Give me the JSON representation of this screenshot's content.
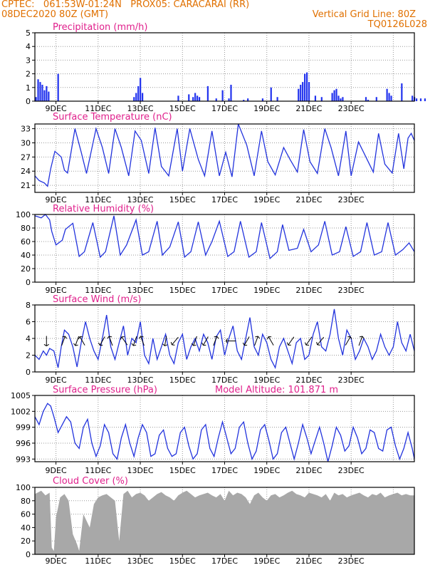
{
  "header": {
    "line1_left": "CPTEC:   061:53W-01:24N   PROX05: CARACARAI (RR)",
    "line2_left": "08DEC2020 80Z (GMT)",
    "line2_right": "Vertical Grid Line: 80Z",
    "line3_right": "TQ0126L028"
  },
  "x_tick_labels": [
    "9DEC",
    "11DEC",
    "13DEC",
    "15DEC",
    "17DEC",
    "19DEC",
    "21DEC",
    "23DEC"
  ],
  "colors": {
    "line": "#2233dd",
    "bar": "#2233ee",
    "cloud": "#a8a8a8",
    "title": "#e0208c",
    "header": "#e07000"
  },
  "chart_data": [
    {
      "type": "bar",
      "title": "Precipitation (mm/h)",
      "ylim": [
        0,
        5
      ],
      "yticks": [
        0,
        1,
        2,
        3,
        4,
        5
      ],
      "x_unit": "days since 08DEC2020 00Z",
      "x": [
        0.05,
        0.15,
        0.25,
        0.35,
        0.45,
        0.55,
        0.65,
        1.1,
        4.7,
        4.8,
        4.9,
        5.0,
        5.1,
        6.8,
        7.3,
        7.5,
        7.6,
        7.7,
        7.8,
        8.2,
        8.6,
        8.9,
        9.2,
        9.3,
        9.9,
        10.1,
        10.8,
        11.2,
        11.5,
        12.5,
        12.6,
        12.7,
        12.8,
        12.9,
        13.0,
        13.3,
        13.6,
        14.1,
        14.2,
        14.3,
        14.4,
        14.5,
        14.6,
        15.7,
        15.8,
        16.2,
        16.7,
        16.8,
        16.9,
        17.4,
        17.9,
        18.0,
        18.1,
        18.3,
        18.5
      ],
      "values": [
        0.3,
        1.6,
        1.4,
        1.2,
        0.8,
        1.1,
        0.7,
        2.0,
        0.3,
        0.6,
        1.1,
        1.7,
        0.6,
        0.4,
        0.5,
        0.3,
        0.6,
        0.4,
        0.3,
        1.1,
        0.2,
        0.8,
        0.2,
        1.2,
        0.1,
        0.2,
        0.2,
        1.0,
        0.3,
        0.9,
        1.2,
        1.4,
        2.0,
        2.1,
        1.4,
        0.4,
        0.3,
        0.6,
        0.8,
        0.9,
        0.4,
        0.2,
        0.3,
        0.3,
        0.1,
        0.3,
        0.9,
        0.6,
        0.4,
        1.3,
        0.4,
        0.3,
        0.2,
        0.2,
        0.2
      ]
    },
    {
      "type": "line",
      "title": "Surface Temperature (nC)",
      "ylim": [
        19.5,
        34
      ],
      "yticks": [
        21,
        24,
        27,
        30,
        33
      ],
      "x": [
        0,
        0.2,
        0.45,
        0.6,
        0.75,
        0.95,
        1.25,
        1.4,
        1.55,
        1.9,
        2.2,
        2.45,
        2.9,
        3.2,
        3.5,
        3.8,
        4.1,
        4.45,
        4.75,
        5.05,
        5.4,
        5.7,
        6.0,
        6.35,
        6.75,
        7.0,
        7.35,
        7.75,
        8.05,
        8.4,
        8.75,
        9.05,
        9.35,
        9.65,
        10.05,
        10.4,
        10.75,
        11.05,
        11.4,
        11.8,
        12.1,
        12.45,
        12.75,
        13.05,
        13.4,
        13.75,
        14.05,
        14.4,
        14.75,
        15.0,
        15.35,
        15.7,
        16.05,
        16.3,
        16.6,
        16.95,
        17.25,
        17.5,
        17.7,
        17.85,
        18.0
      ],
      "values": [
        23.0,
        22.0,
        21.5,
        20.8,
        24.5,
        28.2,
        27.0,
        24.2,
        23.6,
        33.0,
        28.0,
        23.5,
        33.0,
        29.0,
        23.5,
        33.0,
        29.0,
        23.0,
        32.5,
        30.5,
        23.5,
        33.2,
        25.0,
        23.0,
        33.0,
        24.0,
        33.0,
        26.5,
        23.0,
        32.5,
        23.0,
        28.0,
        22.8,
        34.0,
        29.5,
        23.0,
        32.5,
        26.0,
        23.2,
        29.0,
        26.5,
        23.8,
        32.8,
        26.0,
        23.5,
        33.0,
        29.0,
        23.0,
        32.5,
        23.0,
        30.2,
        27.0,
        23.8,
        32.0,
        25.5,
        23.6,
        32.0,
        24.5,
        31.0,
        32.0,
        30.5
      ]
    },
    {
      "type": "line",
      "title": "Relative Humidity (%)",
      "ylim": [
        0,
        100
      ],
      "yticks": [
        0,
        20,
        40,
        60,
        80,
        100
      ],
      "x": [
        0,
        0.3,
        0.5,
        0.7,
        0.8,
        1.0,
        1.3,
        1.45,
        1.8,
        2.1,
        2.35,
        2.75,
        3.1,
        3.35,
        3.75,
        4.05,
        4.35,
        4.8,
        5.1,
        5.4,
        5.8,
        6.05,
        6.4,
        6.8,
        7.1,
        7.4,
        7.75,
        8.1,
        8.4,
        8.75,
        9.15,
        9.45,
        9.75,
        10.15,
        10.5,
        10.75,
        11.15,
        11.5,
        11.75,
        12.05,
        12.45,
        12.75,
        13.1,
        13.45,
        13.75,
        14.1,
        14.45,
        14.75,
        15.1,
        15.45,
        15.75,
        16.1,
        16.45,
        16.75,
        17.1,
        17.45,
        17.75,
        18.0
      ],
      "values": [
        98,
        95,
        100,
        92,
        75,
        55,
        62,
        78,
        87,
        38,
        45,
        88,
        37,
        45,
        98,
        40,
        55,
        92,
        40,
        45,
        90,
        40,
        52,
        89,
        37,
        45,
        89,
        40,
        60,
        90,
        38,
        45,
        90,
        37,
        45,
        88,
        35,
        45,
        85,
        47,
        50,
        78,
        45,
        55,
        90,
        40,
        45,
        82,
        38,
        45,
        88,
        40,
        45,
        88,
        40,
        48,
        58,
        45
      ]
    },
    {
      "type": "line",
      "title": "Surface Wind (m/s)",
      "ylim": [
        0,
        8
      ],
      "yticks": [
        0,
        2,
        4,
        6,
        8
      ],
      "x": [
        0,
        0.2,
        0.4,
        0.55,
        0.7,
        0.9,
        1.1,
        1.25,
        1.4,
        1.6,
        1.8,
        2.0,
        2.2,
        2.4,
        2.6,
        2.8,
        3.0,
        3.2,
        3.4,
        3.6,
        3.8,
        4.0,
        4.2,
        4.4,
        4.6,
        4.8,
        5.0,
        5.2,
        5.4,
        5.6,
        5.8,
        6.0,
        6.2,
        6.4,
        6.6,
        6.8,
        7.0,
        7.2,
        7.4,
        7.6,
        7.8,
        8.0,
        8.2,
        8.4,
        8.6,
        8.8,
        9.0,
        9.2,
        9.4,
        9.6,
        9.8,
        10.0,
        10.2,
        10.4,
        10.6,
        10.8,
        11.0,
        11.2,
        11.4,
        11.6,
        11.8,
        12.0,
        12.2,
        12.4,
        12.6,
        12.8,
        13.0,
        13.2,
        13.4,
        13.6,
        13.8,
        14.0,
        14.2,
        14.4,
        14.6,
        14.8,
        15.0,
        15.2,
        15.4,
        15.6,
        15.8,
        16.0,
        16.2,
        16.4,
        16.6,
        16.8,
        17.0,
        17.2,
        17.4,
        17.6,
        17.8,
        18.0
      ],
      "values": [
        2.0,
        1.5,
        2.5,
        2.0,
        2.8,
        2.5,
        0.5,
        3.0,
        5.0,
        4.5,
        3.0,
        0.6,
        3.5,
        6.0,
        4.0,
        2.5,
        1.5,
        4.0,
        6.8,
        3.0,
        1.5,
        3.5,
        5.5,
        2.0,
        4.0,
        3.5,
        6.0,
        2.0,
        1.0,
        4.0,
        1.5,
        3.0,
        4.5,
        2.0,
        1.0,
        3.5,
        4.5,
        1.5,
        3.0,
        4.0,
        2.5,
        4.5,
        3.5,
        1.5,
        4.2,
        5.0,
        2.0,
        4.0,
        5.5,
        2.5,
        1.5,
        4.0,
        6.5,
        3.0,
        2.0,
        4.5,
        3.5,
        1.5,
        0.5,
        3.0,
        4.0,
        2.5,
        1.0,
        3.5,
        4.0,
        1.5,
        2.0,
        4.5,
        6.0,
        3.0,
        2.5,
        4.5,
        7.5,
        4.0,
        2.0,
        5.0,
        4.0,
        1.5,
        2.5,
        4.0,
        3.0,
        1.5,
        2.5,
        4.5,
        3.0,
        2.0,
        3.0,
        6.0,
        3.5,
        2.5,
        4.5,
        2.5
      ],
      "arrow_x": [
        0.55,
        1.35,
        2.0,
        2.25,
        3.2,
        3.6,
        4.25,
        4.75,
        5.1,
        6.2,
        6.65,
        7.6,
        8.1,
        8.55,
        9.3,
        10.05,
        10.5,
        11.2,
        12.15,
        13.0,
        13.55,
        14.85,
        15.45
      ],
      "arrow_angle_deg": [
        270,
        70,
        250,
        120,
        240,
        110,
        125,
        250,
        110,
        260,
        230,
        250,
        240,
        70,
        180,
        240,
        70,
        120,
        235,
        235,
        230,
        60,
        70
      ]
    },
    {
      "type": "line",
      "title": "Surface Pressure (hPa)",
      "annotation": "Model Altitude: 101.871 m",
      "ylim": [
        992.5,
        1005
      ],
      "yticks": [
        993,
        996,
        999,
        1002,
        1005
      ],
      "x": [
        0,
        0.2,
        0.4,
        0.6,
        0.75,
        0.9,
        1.1,
        1.3,
        1.5,
        1.7,
        1.9,
        2.1,
        2.3,
        2.5,
        2.7,
        2.9,
        3.1,
        3.3,
        3.5,
        3.7,
        3.9,
        4.1,
        4.3,
        4.5,
        4.7,
        4.9,
        5.1,
        5.3,
        5.5,
        5.7,
        5.9,
        6.1,
        6.3,
        6.5,
        6.7,
        6.9,
        7.1,
        7.3,
        7.5,
        7.7,
        7.9,
        8.1,
        8.3,
        8.5,
        8.7,
        8.9,
        9.1,
        9.3,
        9.5,
        9.7,
        9.9,
        10.1,
        10.3,
        10.5,
        10.7,
        10.9,
        11.1,
        11.3,
        11.5,
        11.7,
        11.9,
        12.1,
        12.3,
        12.5,
        12.7,
        12.9,
        13.1,
        13.3,
        13.5,
        13.7,
        13.9,
        14.1,
        14.3,
        14.5,
        14.7,
        14.9,
        15.1,
        15.3,
        15.5,
        15.7,
        15.9,
        16.1,
        16.3,
        16.5,
        16.7,
        16.9,
        17.1,
        17.3,
        17.5,
        17.7,
        17.9,
        18.0
      ],
      "values": [
        1001,
        999.5,
        1002,
        1003.5,
        1003,
        1001,
        998,
        999.5,
        1001,
        1000,
        996,
        995,
        999,
        1000.5,
        996,
        993.5,
        995.5,
        999.5,
        998,
        994,
        993,
        997,
        999.5,
        996,
        993.5,
        997,
        999.5,
        998,
        993.5,
        994,
        997.5,
        998.5,
        995,
        993.5,
        994,
        998,
        999,
        995.5,
        993,
        994,
        998.5,
        999.5,
        995,
        993.5,
        997,
        1000,
        997,
        994,
        995,
        999,
        1000,
        996,
        993,
        994.5,
        998.5,
        999.5,
        996.5,
        993,
        994,
        998,
        999,
        996,
        993,
        996,
        999.5,
        997,
        994,
        996.5,
        999,
        996,
        992.5,
        995.5,
        999,
        997.5,
        994.5,
        995.5,
        999,
        997,
        994,
        995,
        998.5,
        998,
        995,
        994.5,
        998.5,
        999,
        995.5,
        993,
        995,
        998,
        995,
        993
      ]
    },
    {
      "type": "area",
      "title": "Cloud Cover (%)",
      "ylim": [
        0,
        100
      ],
      "yticks": [
        0,
        20,
        40,
        60,
        80,
        100
      ],
      "x": [
        0,
        0.3,
        0.5,
        0.7,
        0.8,
        0.9,
        1.0,
        1.2,
        1.4,
        1.6,
        1.8,
        2.0,
        2.1,
        2.3,
        2.6,
        2.8,
        3.0,
        3.2,
        3.4,
        3.6,
        3.8,
        4.0,
        4.2,
        4.4,
        4.6,
        4.8,
        5.0,
        5.2,
        5.4,
        5.6,
        5.8,
        6.0,
        6.2,
        6.4,
        6.6,
        6.8,
        7.0,
        7.2,
        7.4,
        7.6,
        7.8,
        8.0,
        8.2,
        8.4,
        8.6,
        8.8,
        9.0,
        9.2,
        9.4,
        9.6,
        9.8,
        10.0,
        10.2,
        10.4,
        10.6,
        10.8,
        11.0,
        11.2,
        11.4,
        11.6,
        11.8,
        12.0,
        12.2,
        12.4,
        12.6,
        12.8,
        13.0,
        13.2,
        13.4,
        13.6,
        13.8,
        14.0,
        14.2,
        14.4,
        14.6,
        14.8,
        15.0,
        15.2,
        15.4,
        15.6,
        15.8,
        16.0,
        16.2,
        16.4,
        16.6,
        16.8,
        17.0,
        17.2,
        17.4,
        17.6,
        17.8,
        18.0
      ],
      "values": [
        90,
        95,
        88,
        92,
        10,
        5,
        55,
        85,
        90,
        80,
        30,
        15,
        5,
        60,
        40,
        75,
        85,
        88,
        90,
        85,
        80,
        20,
        90,
        95,
        85,
        90,
        92,
        88,
        80,
        85,
        90,
        93,
        88,
        85,
        80,
        88,
        92,
        95,
        90,
        85,
        88,
        90,
        92,
        88,
        85,
        90,
        80,
        95,
        88,
        92,
        90,
        85,
        75,
        88,
        92,
        85,
        80,
        88,
        90,
        85,
        88,
        92,
        95,
        90,
        88,
        85,
        92,
        90,
        88,
        85,
        90,
        80,
        92,
        88,
        90,
        85,
        88,
        90,
        92,
        88,
        85,
        90,
        88,
        92,
        85,
        88,
        90,
        92,
        88,
        90,
        88,
        88
      ]
    }
  ]
}
